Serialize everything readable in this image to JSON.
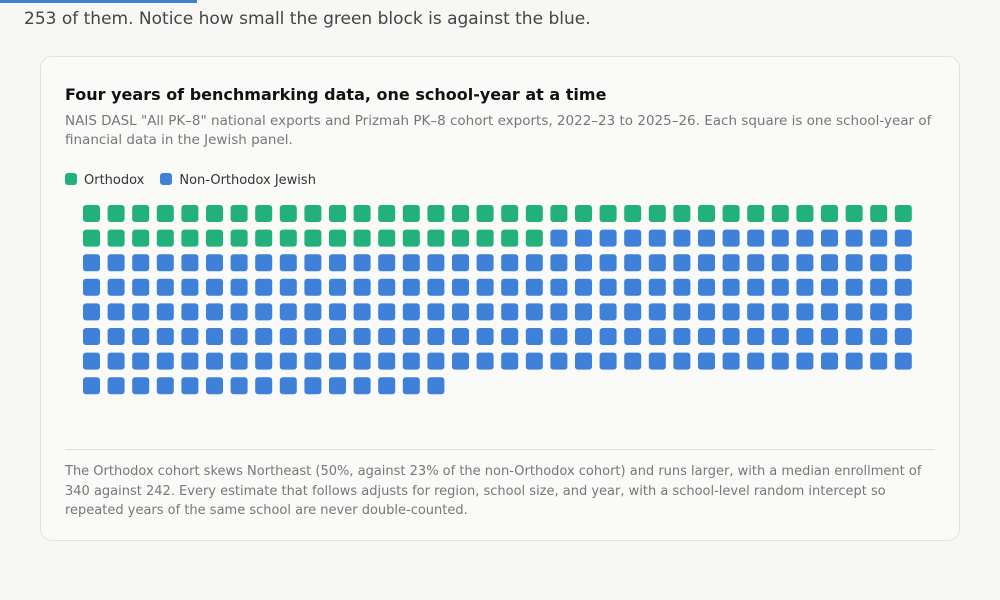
{
  "intro": "253 of them. Notice how small the green block is against the blue.",
  "chart_data": {
    "type": "waffle",
    "title": "Four years of benchmarking data, one school-year at a time",
    "subtitle": "NAIS DASL \"All PK–8\" national exports and Prizmah PK–8 cohort exports, 2022–23 to 2025–26. Each square is one school-year of financial data in the Jewish panel.",
    "series": [
      {
        "name": "Orthodox",
        "color": "#22b07d",
        "value": 53
      },
      {
        "name": "Non-Orthodox Jewish",
        "color": "#3f80d8",
        "value": 200
      }
    ],
    "note": "The Orthodox cohort skews Northeast (50%, against 23% of the non-Orthodox cohort) and runs larger, with a median enrollment of 340 against 242. Every estimate that follows adjusts for region, school size, and year, with a school-level random intercept so repeated years of the same school are never double-counted."
  }
}
